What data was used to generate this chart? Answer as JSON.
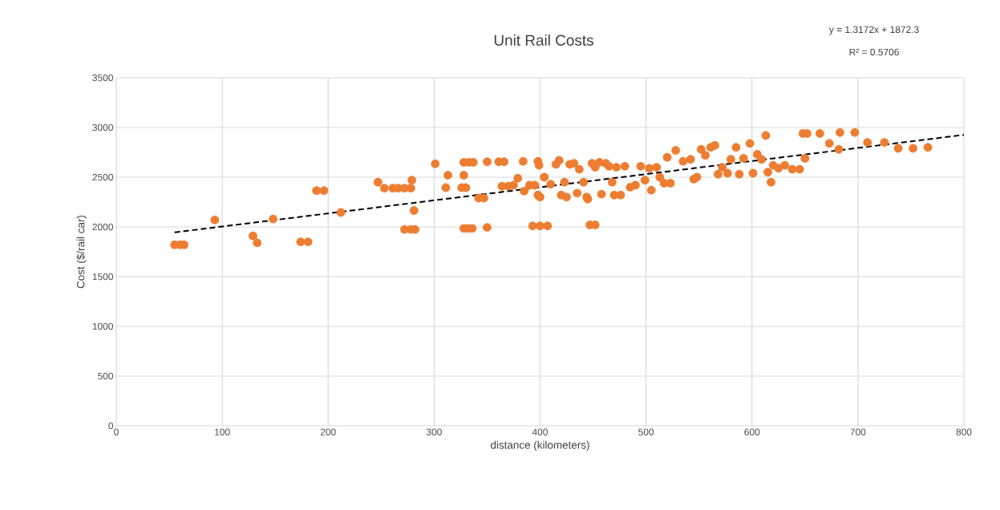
{
  "chart_data": {
    "type": "scatter",
    "title": "Unit Rail Costs",
    "xlabel": "distance (kilometers)",
    "ylabel": "Cost ($/rail car)",
    "xlim": [
      0,
      800
    ],
    "ylim": [
      0,
      3500
    ],
    "xticks": [
      0,
      100,
      200,
      300,
      400,
      500,
      600,
      700,
      800
    ],
    "yticks": [
      0,
      500,
      1000,
      1500,
      2000,
      2500,
      3000,
      3500
    ],
    "grid": true,
    "annotations": [
      "y = 1.3172x + 1872.3",
      "R² = 0.5706"
    ],
    "series": [
      {
        "color": "#ed7d31",
        "marker": "circle",
        "x": [
          55,
          60,
          64,
          93,
          129,
          133,
          148,
          174,
          181,
          189,
          196,
          212,
          247,
          253,
          261,
          266,
          272,
          278,
          279,
          281,
          272,
          278,
          282,
          301,
          311,
          313,
          326,
          328,
          330,
          328,
          333,
          337,
          328,
          332,
          336,
          342,
          347,
          350,
          350,
          361,
          366,
          364,
          370,
          375,
          379,
          384,
          385,
          390,
          395,
          398,
          399,
          393,
          400,
          407,
          398,
          400,
          404,
          410,
          415,
          418,
          420,
          425,
          423,
          428,
          432,
          435,
          437,
          441,
          444,
          445,
          447,
          449,
          452,
          452,
          456,
          458,
          462,
          465,
          468,
          470,
          472,
          476,
          480,
          485,
          490,
          495,
          499,
          503,
          505,
          510,
          513,
          517,
          520,
          523,
          528,
          535,
          542,
          545,
          548,
          552,
          556,
          561,
          565,
          568,
          572,
          577,
          580,
          585,
          588,
          592,
          598,
          601,
          605,
          609,
          613,
          615,
          618,
          620,
          625,
          631,
          638,
          645,
          648,
          652,
          650,
          664,
          673,
          682,
          683,
          697,
          709,
          725,
          738,
          752,
          766
        ],
        "values": [
          1820,
          1820,
          1820,
          2070,
          1910,
          1840,
          2080,
          1850,
          1850,
          2365,
          2365,
          2145,
          2450,
          2390,
          2390,
          2390,
          2390,
          2390,
          2470,
          2165,
          1975,
          1975,
          1975,
          2635,
          2395,
          2520,
          2395,
          2520,
          2395,
          2650,
          2650,
          2650,
          1985,
          1985,
          1985,
          2290,
          2290,
          2655,
          1995,
          2655,
          2655,
          2410,
          2410,
          2420,
          2490,
          2660,
          2360,
          2420,
          2420,
          2660,
          2620,
          2010,
          2010,
          2010,
          2320,
          2300,
          2500,
          2430,
          2630,
          2670,
          2320,
          2300,
          2450,
          2630,
          2640,
          2340,
          2580,
          2450,
          2300,
          2280,
          2020,
          2640,
          2020,
          2600,
          2650,
          2330,
          2640,
          2610,
          2450,
          2320,
          2600,
          2320,
          2610,
          2400,
          2420,
          2610,
          2470,
          2590,
          2370,
          2600,
          2500,
          2440,
          2700,
          2440,
          2770,
          2660,
          2680,
          2480,
          2500,
          2780,
          2720,
          2800,
          2820,
          2530,
          2600,
          2540,
          2680,
          2800,
          2530,
          2690,
          2840,
          2540,
          2730,
          2680,
          2920,
          2550,
          2450,
          2620,
          2590,
          2620,
          2580,
          2580,
          2940,
          2940,
          2690,
          2940,
          2840,
          2780,
          2950,
          2950,
          2850,
          2850,
          2790,
          2790,
          2800
        ]
      },
      {
        "type": "line",
        "color": "#000000",
        "marker": "none",
        "line_style": "dashed",
        "x": [
          55,
          800
        ],
        "values": [
          1945,
          2926
        ]
      }
    ]
  }
}
